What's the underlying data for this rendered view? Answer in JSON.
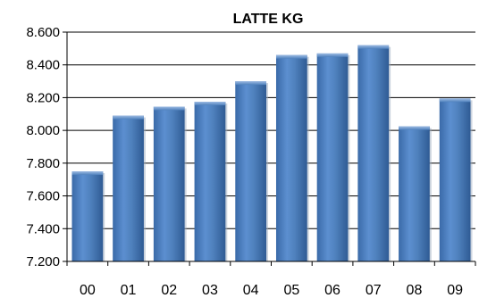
{
  "chart_data": {
    "type": "bar",
    "title": "LATTE KG",
    "xlabel": "",
    "ylabel": "",
    "categories": [
      "00",
      "01",
      "02",
      "03",
      "04",
      "05",
      "06",
      "07",
      "08",
      "09"
    ],
    "values": [
      7750,
      8090,
      8145,
      8175,
      8300,
      8460,
      8470,
      8520,
      8025,
      8195
    ],
    "ylim": [
      7200,
      8600
    ],
    "yticks": [
      7200,
      7400,
      7600,
      7800,
      8000,
      8200,
      8400,
      8600
    ],
    "ytick_labels": [
      "7.200",
      "7.400",
      "7.600",
      "7.800",
      "8.000",
      "8.200",
      "8.400",
      "8.600"
    ],
    "grid": true,
    "legend": "none",
    "bar_color": "#4f81bd"
  }
}
